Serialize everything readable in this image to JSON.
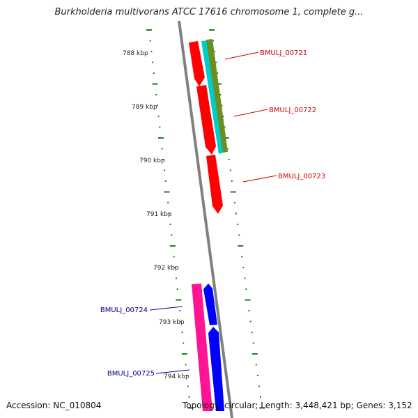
{
  "title": "Burkholderia multivorans ATCC 17616 chromosome 1, complete g...",
  "footer": {
    "accession": "Accession: NC_010804",
    "topology": "Topology: circular; Length: 3,448,421 bp; Genes: 3,152"
  },
  "colors": {
    "backbone": "#808080",
    "tick": "#1a7f1a",
    "forward_label": "#cc0000",
    "reverse_label": "#00008b"
  },
  "ticks": [
    {
      "label": "788 kbp"
    },
    {
      "label": "789 kbp"
    },
    {
      "label": "790 kbp"
    },
    {
      "label": "791 kbp"
    },
    {
      "label": "792 kbp"
    },
    {
      "label": "793 kbp"
    },
    {
      "label": "794 kbp"
    }
  ],
  "genes": [
    {
      "label": "BMULJ_00721",
      "strand": "forward",
      "color": "#cc0000"
    },
    {
      "label": "BMULJ_00722",
      "strand": "forward",
      "color": "#cc0000"
    },
    {
      "label": "BMULJ_00723",
      "strand": "forward",
      "color": "#cc0000"
    },
    {
      "label": "BMULJ_00724",
      "strand": "reverse",
      "color": "#00008b"
    },
    {
      "label": "BMULJ_00725",
      "strand": "reverse",
      "color": "#00008b"
    }
  ],
  "features": [
    {
      "name": "gene-arrow-1",
      "color": "#ff0000"
    },
    {
      "name": "gene-arrow-2",
      "color": "#ff0000"
    },
    {
      "name": "gene-arrow-3",
      "color": "#ff0000"
    },
    {
      "name": "cyan-track-bar",
      "color": "#00cccc"
    },
    {
      "name": "olive-track-bar",
      "color": "#6b8e23"
    },
    {
      "name": "pink-track-bar",
      "color": "#ff1493"
    },
    {
      "name": "blue-gene-arrow-1",
      "color": "#0000ff"
    },
    {
      "name": "blue-gene-arrow-2",
      "color": "#0000ff"
    }
  ]
}
